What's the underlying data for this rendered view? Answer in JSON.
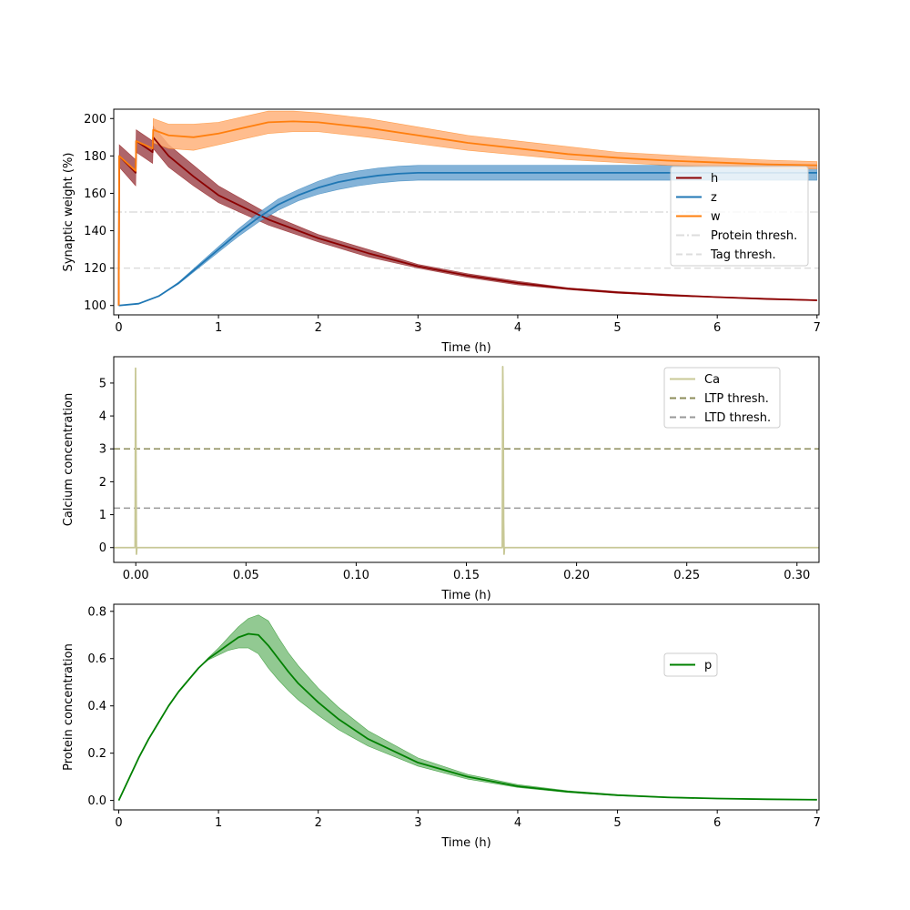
{
  "chart_data": [
    {
      "type": "line",
      "xlabel": "Time (h)",
      "ylabel": "Synaptic weight (%)",
      "xlim": [
        -0.05,
        7.02
      ],
      "ylim": [
        95,
        205
      ],
      "xticks": [
        0,
        1,
        2,
        3,
        4,
        5,
        6,
        7
      ],
      "xtick_labels": [
        "0",
        "1",
        "2",
        "3",
        "4",
        "5",
        "6",
        "7"
      ],
      "yticks": [
        100,
        120,
        140,
        160,
        180,
        200
      ],
      "ytick_labels": [
        "100",
        "120",
        "140",
        "160",
        "180",
        "200"
      ],
      "grid": false,
      "legend_position": "center-right",
      "series": [
        {
          "name": "h",
          "color": "#8b0000",
          "band_color": "#a04a50",
          "x": [
            0,
            0.005,
            0.17,
            0.175,
            0.34,
            0.345,
            0.5,
            0.75,
            1.0,
            1.5,
            2.0,
            2.5,
            3.0,
            3.5,
            4.0,
            4.5,
            5.0,
            5.5,
            6.0,
            6.5,
            7.0
          ],
          "y": [
            100,
            180,
            171,
            188,
            182,
            190,
            180,
            169,
            159,
            146,
            136,
            128,
            121,
            116,
            112,
            109,
            107,
            105.5,
            104.5,
            103.5,
            102.8
          ],
          "band_x": [
            0.005,
            0.17,
            0.175,
            0.34,
            0.345,
            0.5,
            0.75,
            1.0,
            1.5,
            2.0,
            2.5,
            3.0,
            3.5,
            4.0,
            4.5,
            5.0,
            6.0,
            7.0
          ],
          "band_lower": [
            174,
            164,
            182,
            176,
            184,
            174,
            164,
            155,
            143,
            134,
            126,
            120,
            115,
            111,
            108.5,
            106.5,
            104.3,
            102.6
          ],
          "band_upper": [
            186,
            178,
            194,
            188,
            196,
            186,
            175,
            164,
            149,
            138,
            130,
            122,
            117,
            113,
            109.5,
            107.5,
            104.7,
            103
          ]
        },
        {
          "name": "z",
          "color": "#1f77b4",
          "band_color": "#6fa6d1",
          "x": [
            0,
            0.2,
            0.4,
            0.6,
            0.8,
            1.0,
            1.2,
            1.4,
            1.6,
            1.8,
            2.0,
            2.2,
            2.4,
            2.6,
            2.8,
            3.0,
            3.2,
            3.5,
            4.0,
            5.0,
            6.0,
            7.0
          ],
          "y": [
            100,
            101,
            105,
            112,
            121,
            130,
            139,
            147,
            154,
            159,
            163,
            166,
            168,
            169.5,
            170.5,
            171,
            171,
            171,
            171,
            171,
            171,
            171
          ],
          "band_x": [
            0,
            0.2,
            0.4,
            0.6,
            0.8,
            1.0,
            1.2,
            1.4,
            1.6,
            1.8,
            2.0,
            2.2,
            2.4,
            2.6,
            2.8,
            3.0,
            3.2,
            3.5,
            4.0,
            5.0,
            6.0,
            7.0
          ],
          "band_lower": [
            100,
            101,
            105,
            111.5,
            120,
            128.5,
            137,
            144.5,
            151,
            156,
            159.5,
            162,
            164,
            165.5,
            166.5,
            167,
            167,
            167,
            167,
            167,
            167,
            167
          ],
          "band_upper": [
            100,
            101,
            105,
            112.5,
            122,
            131.5,
            141,
            149.5,
            157,
            162,
            166.5,
            170,
            172,
            173.5,
            174.5,
            175,
            175,
            175,
            175,
            175,
            175,
            175
          ]
        },
        {
          "name": "w",
          "color": "#ff7f0e",
          "band_color": "#ffb27a",
          "x": [
            0,
            0.005,
            0.17,
            0.175,
            0.34,
            0.345,
            0.5,
            0.75,
            1.0,
            1.25,
            1.5,
            1.75,
            2.0,
            2.5,
            3.0,
            3.5,
            4.0,
            4.5,
            5.0,
            5.5,
            6.0,
            6.5,
            7.0
          ],
          "y": [
            100,
            180,
            172,
            188,
            184,
            194,
            191,
            190,
            192,
            195,
            198,
            198.5,
            198,
            195,
            191,
            187,
            184,
            181,
            179,
            177.5,
            176.5,
            175.5,
            175
          ],
          "band_x": [
            0.345,
            0.5,
            0.75,
            1.0,
            1.25,
            1.5,
            1.75,
            2.0,
            2.5,
            3.0,
            3.5,
            4.0,
            4.5,
            5.0,
            5.5,
            6.0,
            6.5,
            7.0
          ],
          "band_lower": [
            187,
            184,
            183,
            186,
            189,
            192,
            193,
            193,
            190,
            186.5,
            183,
            180.5,
            178,
            176.5,
            175,
            174.3,
            173.5,
            173
          ],
          "band_upper": [
            200,
            197,
            197,
            198,
            201,
            204,
            204,
            203,
            200,
            195.5,
            191,
            188,
            185,
            182,
            180.5,
            179,
            177.8,
            177
          ]
        }
      ],
      "thresholds": [
        {
          "name": "Protein thresh.",
          "value": 150,
          "color": "#dddddd",
          "style": "dashdot"
        },
        {
          "name": "Tag thresh.",
          "value": 120,
          "color": "#dddddd",
          "style": "dashed"
        }
      ]
    },
    {
      "type": "line",
      "xlabel": "Time (h)",
      "ylabel": "Calcium concentration",
      "xlim": [
        -0.01,
        0.31
      ],
      "ylim": [
        -0.45,
        5.8
      ],
      "xticks": [
        0,
        0.05,
        0.1,
        0.15,
        0.2,
        0.25,
        0.3
      ],
      "xtick_labels": [
        "0.00",
        "0.05",
        "0.10",
        "0.15",
        "0.20",
        "0.25",
        "0.30"
      ],
      "yticks": [
        0,
        1,
        2,
        3,
        4,
        5
      ],
      "ytick_labels": [
        "0",
        "1",
        "2",
        "3",
        "4",
        "5"
      ],
      "grid": false,
      "legend_position": "top-right",
      "series": [
        {
          "name": "Ca",
          "color": "#c8c896",
          "x": [
            -0.01,
            -0.0003,
            -0.0001,
            0,
            0.0001,
            0.0003,
            0.0005,
            0.1663,
            0.1665,
            0.1667,
            0.1668,
            0.1669,
            0.1671,
            0.1673,
            0.31
          ],
          "y": [
            0,
            0,
            5.45,
            4.3,
            2.5,
            -0.2,
            0,
            0,
            5.5,
            4.3,
            2.5,
            0.8,
            -0.2,
            0,
            0
          ]
        }
      ],
      "thresholds": [
        {
          "name": "LTP thresh.",
          "value": 3.0,
          "color": "#8c8c5a",
          "style": "dashed"
        },
        {
          "name": "LTD thresh.",
          "value": 1.2,
          "color": "#999999",
          "style": "dashed"
        }
      ]
    },
    {
      "type": "line",
      "xlabel": "Time (h)",
      "ylabel": "Protein concentration",
      "xlim": [
        -0.05,
        7.02
      ],
      "ylim": [
        -0.04,
        0.83
      ],
      "xticks": [
        0,
        1,
        2,
        3,
        4,
        5,
        6,
        7
      ],
      "xtick_labels": [
        "0",
        "1",
        "2",
        "3",
        "4",
        "5",
        "6",
        "7"
      ],
      "yticks": [
        0,
        0.2,
        0.4,
        0.6,
        0.8
      ],
      "ytick_labels": [
        "0.0",
        "0.2",
        "0.4",
        "0.6",
        "0.8"
      ],
      "grid": false,
      "legend_position": "center-right",
      "series": [
        {
          "name": "p",
          "color": "#008000",
          "band_color": "#7fbf7f",
          "x": [
            0,
            0.1,
            0.2,
            0.3,
            0.4,
            0.5,
            0.6,
            0.7,
            0.8,
            0.9,
            1.0,
            1.1,
            1.2,
            1.3,
            1.4,
            1.5,
            1.6,
            1.7,
            1.8,
            2.0,
            2.2,
            2.5,
            3.0,
            3.5,
            4.0,
            4.5,
            5.0,
            5.5,
            6.0,
            6.5,
            7.0
          ],
          "y": [
            0,
            0.09,
            0.18,
            0.26,
            0.33,
            0.4,
            0.46,
            0.51,
            0.56,
            0.6,
            0.63,
            0.66,
            0.69,
            0.705,
            0.7,
            0.655,
            0.6,
            0.545,
            0.495,
            0.415,
            0.345,
            0.26,
            0.16,
            0.1,
            0.06,
            0.037,
            0.022,
            0.013,
            0.008,
            0.005,
            0.003
          ],
          "band_lower": [
            0,
            0.09,
            0.18,
            0.26,
            0.33,
            0.4,
            0.46,
            0.51,
            0.56,
            0.595,
            0.615,
            0.635,
            0.645,
            0.645,
            0.62,
            0.56,
            0.51,
            0.465,
            0.425,
            0.36,
            0.3,
            0.23,
            0.145,
            0.09,
            0.055,
            0.034,
            0.02,
            0.012,
            0.007,
            0.004,
            0.003
          ],
          "band_upper": [
            0,
            0.09,
            0.18,
            0.26,
            0.33,
            0.4,
            0.46,
            0.51,
            0.56,
            0.605,
            0.645,
            0.69,
            0.735,
            0.77,
            0.785,
            0.76,
            0.69,
            0.625,
            0.57,
            0.475,
            0.395,
            0.295,
            0.18,
            0.11,
            0.067,
            0.041,
            0.025,
            0.015,
            0.009,
            0.006,
            0.003
          ]
        }
      ],
      "thresholds": []
    }
  ]
}
